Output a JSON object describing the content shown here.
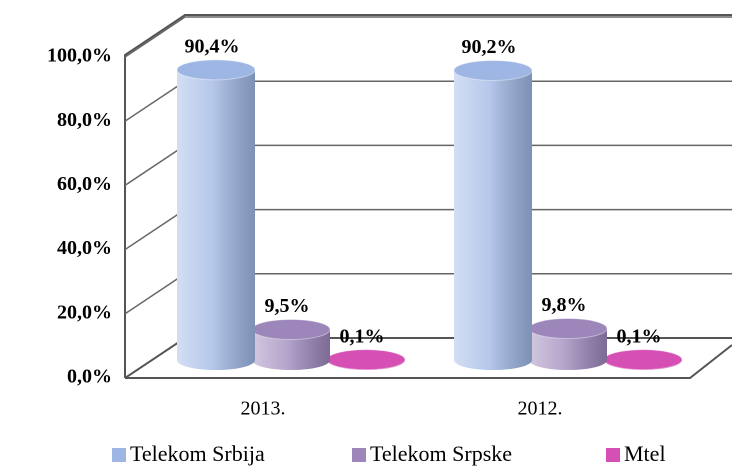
{
  "chart_data": {
    "type": "bar3d",
    "categories": [
      "2013.",
      "2012."
    ],
    "series": [
      {
        "name": "Telekom Srbija",
        "color": "#9db6e4",
        "values": [
          90.4,
          90.2
        ],
        "value_labels": [
          "90,4%",
          "90,2%"
        ]
      },
      {
        "name": "Telekom Srpske",
        "color": "#9c86ba",
        "values": [
          9.5,
          9.8
        ],
        "value_labels": [
          "9,5%",
          "9,8%"
        ]
      },
      {
        "name": "Mtel",
        "color": "#d64fb4",
        "values": [
          0.1,
          0.1
        ],
        "value_labels": [
          "0,1%",
          "0,1%"
        ]
      }
    ],
    "ylim": [
      0,
      100
    ],
    "yticks": [
      {
        "value": 0,
        "label": "0,0%"
      },
      {
        "value": 20,
        "label": "20,0%"
      },
      {
        "value": 40,
        "label": "40,0%"
      },
      {
        "value": 60,
        "label": "60,0%"
      },
      {
        "value": 80,
        "label": "80,0%"
      },
      {
        "value": 100,
        "label": "100,0%"
      }
    ],
    "grid": true,
    "legend": "bottom"
  }
}
